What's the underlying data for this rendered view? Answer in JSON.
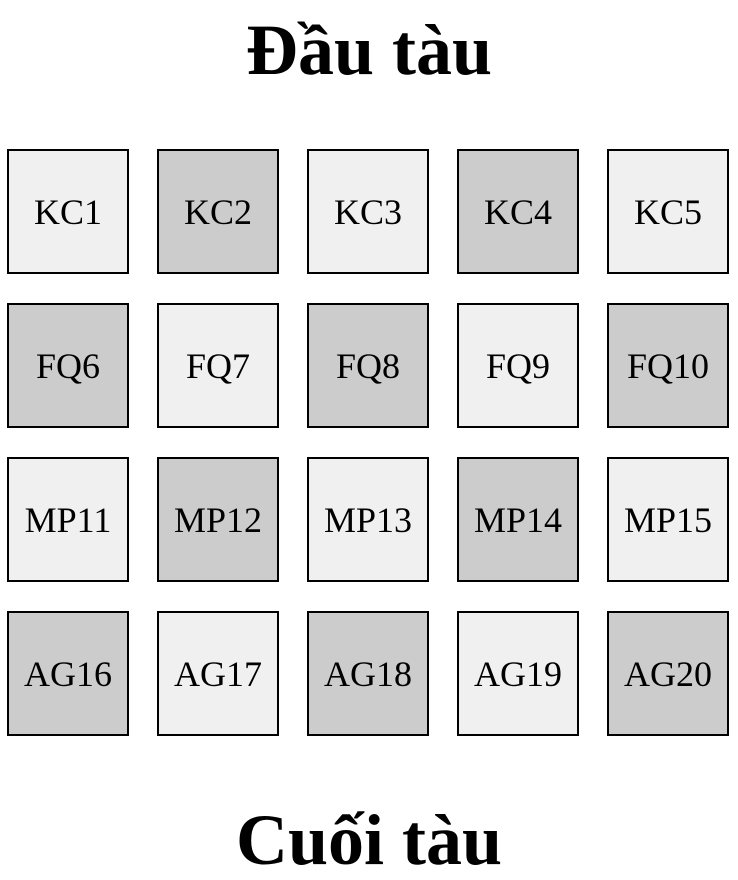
{
  "header": {
    "title": "Đầu tàu"
  },
  "footer": {
    "title": "Cuối tàu"
  },
  "colors": {
    "light": "#f0f0f0",
    "dark": "#cccccc",
    "border": "#000000"
  },
  "cars": [
    [
      "KC1",
      "KC2",
      "KC3",
      "KC4",
      "KC5"
    ],
    [
      "FQ6",
      "FQ7",
      "FQ8",
      "FQ9",
      "FQ10"
    ],
    [
      "MP11",
      "MP12",
      "MP13",
      "MP14",
      "MP15"
    ],
    [
      "AG16",
      "AG17",
      "AG18",
      "AG19",
      "AG20"
    ]
  ]
}
